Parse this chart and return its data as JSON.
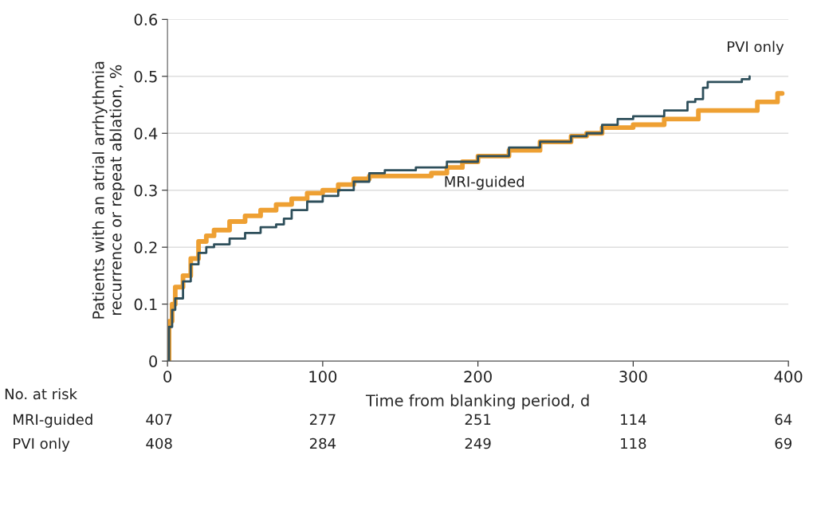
{
  "chart_data": {
    "type": "step",
    "xlabel": "Time from blanking period, d",
    "ylabel": "Patients with an atrial arrhythmia\nrecurrence or repeat ablation, %",
    "xlim": [
      0,
      400
    ],
    "xticks": [
      0,
      100,
      200,
      300,
      400
    ],
    "ylim": [
      0,
      0.6
    ],
    "yticks": [
      0,
      0.1,
      0.2,
      0.3,
      0.4,
      0.5,
      0.6
    ],
    "grid": "y",
    "legend": false,
    "series": [
      {
        "name": "MRI-guided",
        "color": "#eea033",
        "x": [
          0,
          1,
          3,
          5,
          10,
          15,
          20,
          25,
          30,
          40,
          50,
          60,
          70,
          80,
          90,
          100,
          110,
          120,
          130,
          150,
          170,
          180,
          190,
          200,
          220,
          240,
          260,
          270,
          280,
          300,
          320,
          342,
          380,
          393,
          396
        ],
        "values": [
          0,
          0.07,
          0.1,
          0.13,
          0.15,
          0.18,
          0.21,
          0.22,
          0.23,
          0.245,
          0.255,
          0.265,
          0.275,
          0.285,
          0.295,
          0.3,
          0.31,
          0.32,
          0.325,
          0.325,
          0.33,
          0.34,
          0.35,
          0.36,
          0.37,
          0.385,
          0.395,
          0.4,
          0.41,
          0.415,
          0.425,
          0.44,
          0.455,
          0.47,
          0.47
        ]
      },
      {
        "name": "PVI only",
        "color": "#2e4f5b",
        "x": [
          0,
          1,
          3,
          5,
          10,
          15,
          20,
          25,
          30,
          40,
          50,
          60,
          70,
          75,
          80,
          90,
          100,
          110,
          120,
          130,
          140,
          160,
          180,
          200,
          220,
          240,
          260,
          270,
          280,
          290,
          300,
          320,
          335,
          340,
          345,
          348,
          370,
          375
        ],
        "values": [
          0,
          0.06,
          0.09,
          0.11,
          0.14,
          0.17,
          0.19,
          0.2,
          0.205,
          0.215,
          0.225,
          0.235,
          0.24,
          0.25,
          0.265,
          0.28,
          0.29,
          0.3,
          0.315,
          0.33,
          0.335,
          0.34,
          0.35,
          0.36,
          0.375,
          0.385,
          0.395,
          0.4,
          0.415,
          0.425,
          0.43,
          0.44,
          0.455,
          0.46,
          0.48,
          0.49,
          0.495,
          0.5
        ]
      }
    ],
    "annotations": [
      "No. at risk",
      "MRI-guided",
      "407",
      "277",
      "251",
      "114",
      "64",
      "PVI only",
      "408",
      "284",
      "249",
      "118",
      "69"
    ]
  }
}
